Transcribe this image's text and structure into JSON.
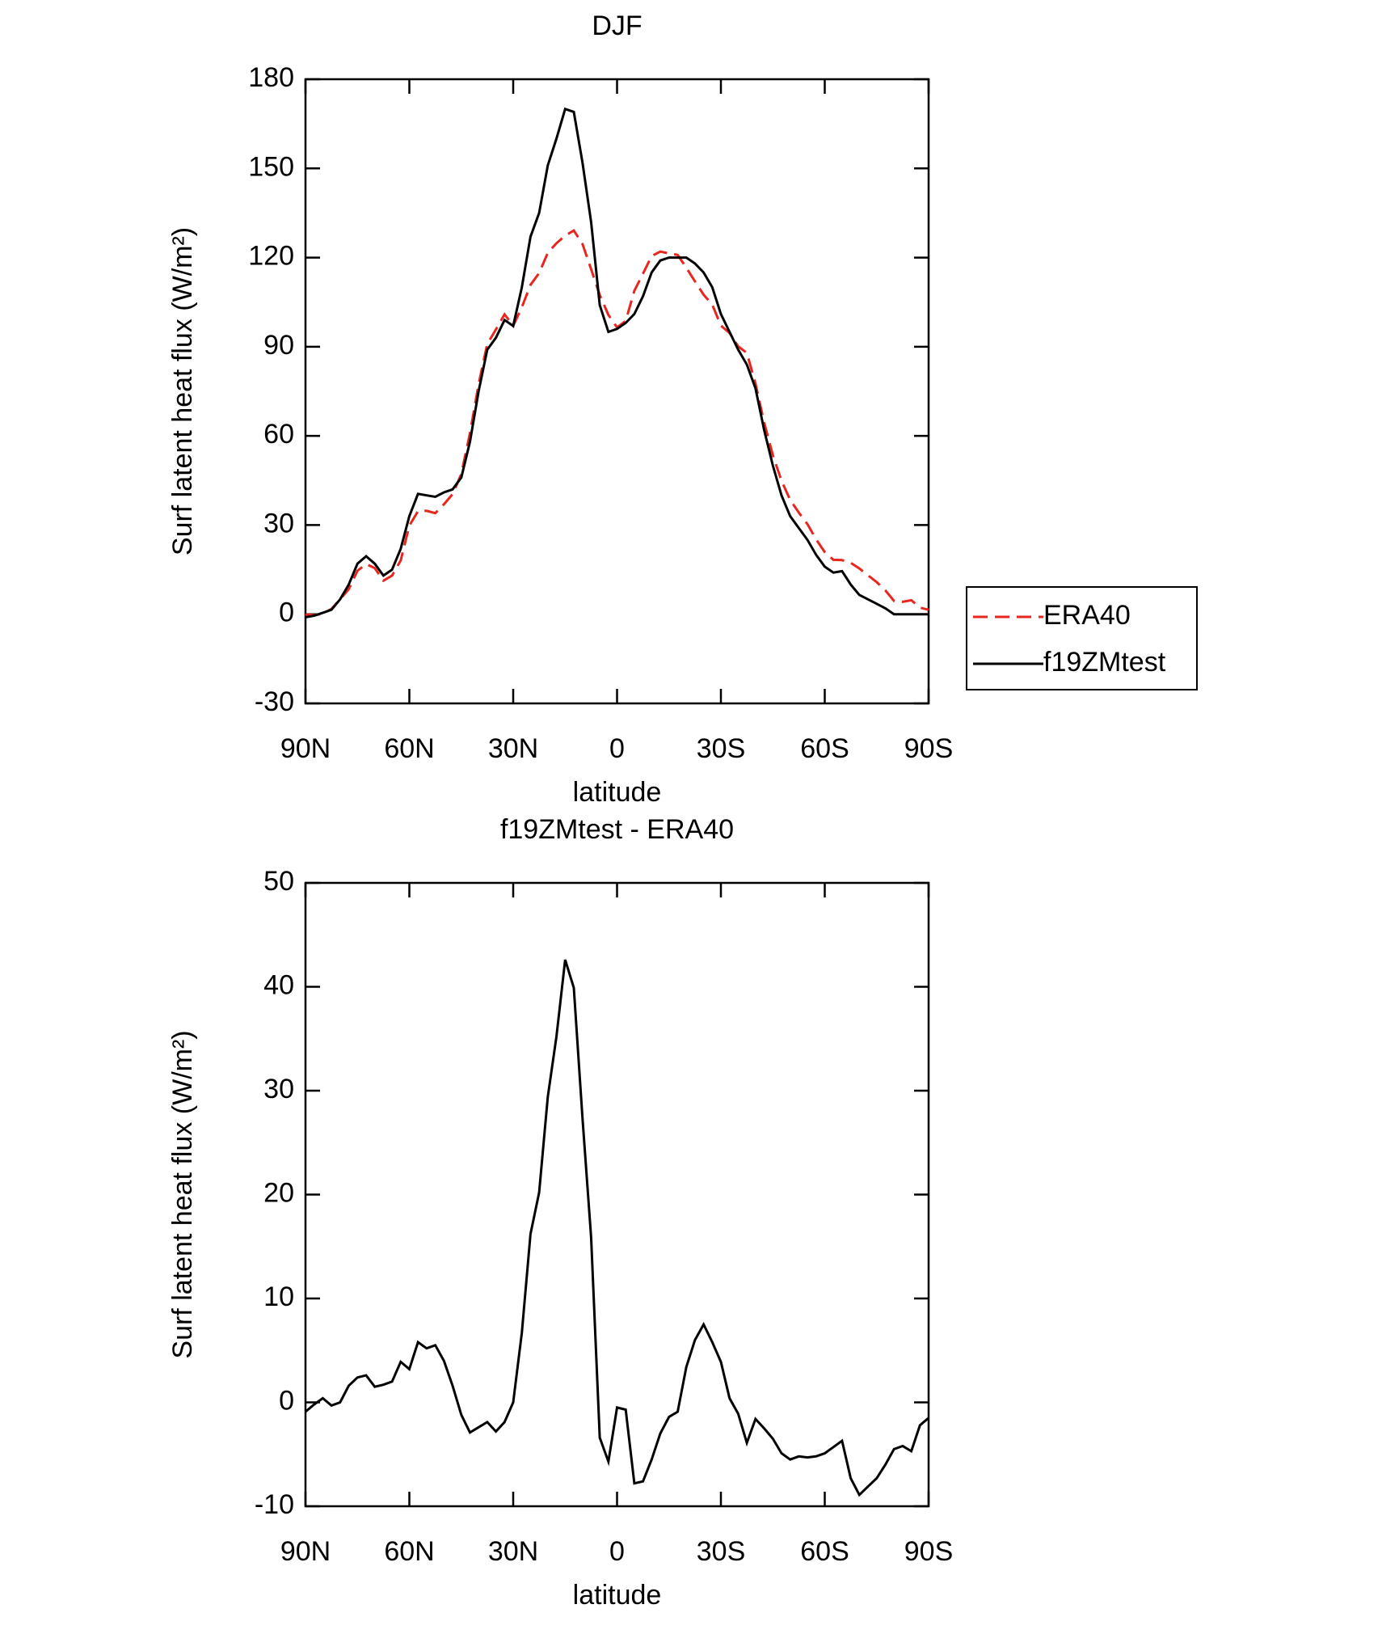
{
  "chart_data": [
    {
      "type": "line",
      "title": "DJF",
      "x_label": "latitude",
      "y_label": "Surf latent heat flux (W/m²)",
      "x": [
        90,
        87.5,
        85,
        82.5,
        80,
        77.5,
        75,
        72.5,
        70,
        67.5,
        65,
        62.5,
        60,
        57.5,
        55,
        52.5,
        50,
        47.5,
        45,
        42.5,
        40,
        37.5,
        35,
        32.5,
        30,
        27.5,
        25,
        22.5,
        20,
        17.5,
        15,
        12.5,
        10,
        7.5,
        5,
        2.5,
        0,
        -2.5,
        -5,
        -7.5,
        -10,
        -12.5,
        -15,
        -17.5,
        -20,
        -22.5,
        -25,
        -27.5,
        -30,
        -32.5,
        -35,
        -37.5,
        -40,
        -42.5,
        -45,
        -47.5,
        -50,
        -52.5,
        -55,
        -57.5,
        -60,
        -62.5,
        -65,
        -67.5,
        -70,
        -72.5,
        -75,
        -77.5,
        -80,
        -82.5,
        -85,
        -87.5,
        -90
      ],
      "series": [
        {
          "name": "ERA40",
          "color": "#e8261f",
          "dash": true,
          "values": [
            -0.1,
            -0.3,
            0.1,
            1.8,
            5,
            8.4,
            14.6,
            16.9,
            15.5,
            11.3,
            13,
            18.1,
            29.8,
            34.7,
            34.8,
            34,
            37,
            40.4,
            47.2,
            60.9,
            77.4,
            90.9,
            95.8,
            100.9,
            97,
            103.3,
            110.8,
            114.8,
            121.6,
            124.8,
            127.4,
            129.1,
            124.6,
            116.1,
            107.4,
            100.7,
            96.5,
            98.7,
            108.8,
            114.6,
            120.5,
            122,
            121.4,
            120.9,
            116.6,
            112,
            107.5,
            104.2,
            97.1,
            94.6,
            90.1,
            87.9,
            77.6,
            64.5,
            53.5,
            44.9,
            38.5,
            34.2,
            30.3,
            25.2,
            20.9,
            18.3,
            18.2,
            17.3,
            15.4,
            13.1,
            10.8,
            8,
            4.5,
            4.2,
            4.7,
            2.2,
            1.5
          ]
        },
        {
          "name": "f19ZMtest",
          "color": "#000000",
          "dash": false,
          "values": [
            -1,
            -0.5,
            0.5,
            1.5,
            5,
            10,
            17,
            19.5,
            17,
            13,
            15,
            22,
            33,
            40.5,
            40,
            39.5,
            41,
            42,
            46,
            58,
            75,
            89,
            93,
            99,
            97,
            110,
            127,
            135,
            151,
            160,
            170,
            169,
            152,
            132,
            104,
            95,
            96,
            98,
            101,
            107,
            115,
            119,
            120,
            120,
            120,
            118,
            115,
            110,
            101,
            95,
            89,
            84,
            76,
            62,
            50,
            40,
            33,
            29,
            25,
            20,
            16,
            14,
            14.5,
            10,
            6.5,
            5,
            3.5,
            2,
            0,
            0,
            0,
            0,
            0
          ]
        }
      ],
      "xlim": [
        90,
        -90
      ],
      "xticks": [
        {
          "value": 90,
          "label": "90N"
        },
        {
          "value": 60,
          "label": "60N"
        },
        {
          "value": 30,
          "label": "30N"
        },
        0,
        {
          "value": -30,
          "label": "30S"
        },
        {
          "value": -60,
          "label": "60S"
        },
        {
          "value": -90,
          "label": "90S"
        }
      ],
      "ylim": [
        -30,
        180
      ],
      "yticks": [
        -30,
        0,
        30,
        60,
        90,
        120,
        150,
        180
      ],
      "legend": "right"
    },
    {
      "type": "line",
      "title": "f19ZMtest - ERA40",
      "x_label": "latitude",
      "y_label": "Surf latent heat flux (W/m²)",
      "x": [
        90,
        87.5,
        85,
        82.5,
        80,
        77.5,
        75,
        72.5,
        70,
        67.5,
        65,
        62.5,
        60,
        57.5,
        55,
        52.5,
        50,
        47.5,
        45,
        42.5,
        40,
        37.5,
        35,
        32.5,
        30,
        27.5,
        25,
        22.5,
        20,
        17.5,
        15,
        12.5,
        10,
        7.5,
        5,
        2.5,
        0,
        -2.5,
        -5,
        -7.5,
        -10,
        -12.5,
        -15,
        -17.5,
        -20,
        -22.5,
        -25,
        -27.5,
        -30,
        -32.5,
        -35,
        -37.5,
        -40,
        -42.5,
        -45,
        -47.5,
        -50,
        -52.5,
        -55,
        -57.5,
        -60,
        -62.5,
        -65,
        -67.5,
        -70,
        -72.5,
        -75,
        -77.5,
        -80,
        -82.5,
        -85,
        -87.5,
        -90
      ],
      "series": [
        {
          "color": "#000000",
          "dash": false,
          "values": [
            -0.9,
            -0.2,
            0.4,
            -0.3,
            0,
            1.6,
            2.4,
            2.6,
            1.5,
            1.7,
            2,
            3.9,
            3.2,
            5.8,
            5.2,
            5.5,
            4,
            1.6,
            -1.2,
            -2.9,
            -2.4,
            -1.9,
            -2.8,
            -1.9,
            0,
            6.7,
            16.2,
            20.2,
            29.4,
            35.2,
            42.6,
            39.9,
            27.4,
            15.9,
            -3.4,
            -5.7,
            -0.5,
            -0.7,
            -7.8,
            -7.6,
            -5.5,
            -3,
            -1.4,
            -0.9,
            3.4,
            6,
            7.5,
            5.8,
            3.9,
            0.4,
            -1.1,
            -3.9,
            -1.6,
            -2.5,
            -3.5,
            -4.9,
            -5.5,
            -5.2,
            -5.3,
            -5.2,
            -4.9,
            -4.3,
            -3.7,
            -7.3,
            -8.9,
            -8.1,
            -7.3,
            -6,
            -4.5,
            -4.2,
            -4.7,
            -2.2,
            -1.5
          ]
        }
      ],
      "xlim": [
        90,
        -90
      ],
      "xticks": [
        {
          "value": 90,
          "label": "90N"
        },
        {
          "value": 60,
          "label": "60N"
        },
        {
          "value": 30,
          "label": "30N"
        },
        0,
        {
          "value": -30,
          "label": "30S"
        },
        {
          "value": -60,
          "label": "60S"
        },
        {
          "value": -90,
          "label": "90S"
        }
      ],
      "ylim": [
        -10,
        50
      ],
      "yticks": [
        -10,
        0,
        10,
        20,
        30,
        40,
        50
      ]
    }
  ]
}
